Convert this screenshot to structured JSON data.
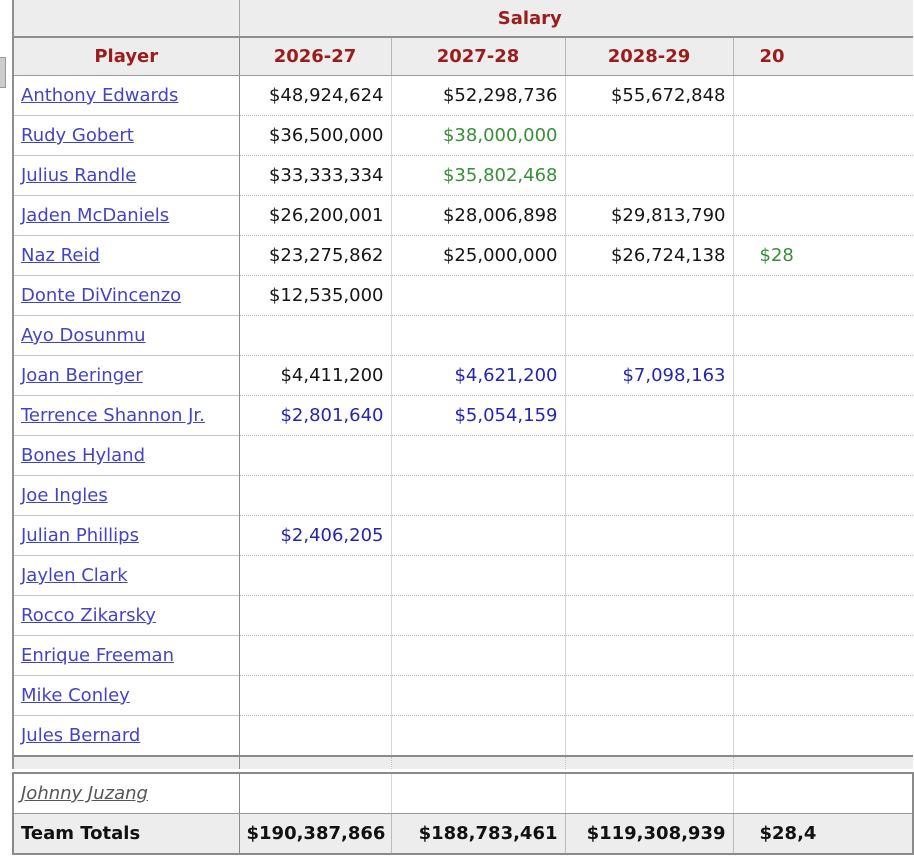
{
  "group_header": {
    "blank": "",
    "label": "Salary"
  },
  "columns": [
    "Player",
    "2026-27",
    "2027-28",
    "2028-29",
    "20"
  ],
  "main_rows": [
    {
      "name": "Anthony Edwards",
      "cells": [
        [
          "$48,924,624",
          "k"
        ],
        [
          "$52,298,736",
          "k"
        ],
        [
          "$55,672,848",
          "k"
        ],
        [
          "",
          "k"
        ]
      ]
    },
    {
      "name": "Rudy Gobert",
      "cells": [
        [
          "$36,500,000",
          "k"
        ],
        [
          "$38,000,000",
          "g"
        ],
        [
          "",
          "k"
        ],
        [
          "",
          "k"
        ]
      ]
    },
    {
      "name": "Julius Randle",
      "cells": [
        [
          "$33,333,334",
          "k"
        ],
        [
          "$35,802,468",
          "g"
        ],
        [
          "",
          "k"
        ],
        [
          "",
          "k"
        ]
      ]
    },
    {
      "name": "Jaden McDaniels",
      "cells": [
        [
          "$26,200,001",
          "k"
        ],
        [
          "$28,006,898",
          "k"
        ],
        [
          "$29,813,790",
          "k"
        ],
        [
          "",
          "k"
        ]
      ]
    },
    {
      "name": "Naz Reid",
      "cells": [
        [
          "$23,275,862",
          "k"
        ],
        [
          "$25,000,000",
          "k"
        ],
        [
          "$26,724,138",
          "k"
        ],
        [
          "$28",
          "g"
        ]
      ]
    },
    {
      "name": "Donte DiVincenzo",
      "cells": [
        [
          "$12,535,000",
          "k"
        ],
        [
          "",
          "k"
        ],
        [
          "",
          "k"
        ],
        [
          "",
          "k"
        ]
      ]
    },
    {
      "name": "Ayo Dosunmu",
      "cells": [
        [
          "",
          "k"
        ],
        [
          "",
          "k"
        ],
        [
          "",
          "k"
        ],
        [
          "",
          "k"
        ]
      ]
    },
    {
      "name": "Joan Beringer",
      "cells": [
        [
          "$4,411,200",
          "k"
        ],
        [
          "$4,621,200",
          "b"
        ],
        [
          "$7,098,163",
          "b"
        ],
        [
          "",
          "k"
        ]
      ]
    },
    {
      "name": "Terrence Shannon Jr.",
      "cells": [
        [
          "$2,801,640",
          "b"
        ],
        [
          "$5,054,159",
          "b"
        ],
        [
          "",
          "k"
        ],
        [
          "",
          "k"
        ]
      ]
    },
    {
      "name": "Bones Hyland",
      "cells": [
        [
          "",
          "k"
        ],
        [
          "",
          "k"
        ],
        [
          "",
          "k"
        ],
        [
          "",
          "k"
        ]
      ]
    },
    {
      "name": "Joe Ingles",
      "cells": [
        [
          "",
          "k"
        ],
        [
          "",
          "k"
        ],
        [
          "",
          "k"
        ],
        [
          "",
          "k"
        ]
      ]
    },
    {
      "name": "Julian Phillips",
      "cells": [
        [
          "$2,406,205",
          "b"
        ],
        [
          "",
          "k"
        ],
        [
          "",
          "k"
        ],
        [
          "",
          "k"
        ]
      ]
    },
    {
      "name": "Jaylen Clark",
      "cells": [
        [
          "",
          "k"
        ],
        [
          "",
          "k"
        ],
        [
          "",
          "k"
        ],
        [
          "",
          "k"
        ]
      ]
    },
    {
      "name": "Rocco Zikarsky",
      "cells": [
        [
          "",
          "k"
        ],
        [
          "",
          "k"
        ],
        [
          "",
          "k"
        ],
        [
          "",
          "k"
        ]
      ]
    },
    {
      "name": "Enrique Freeman",
      "cells": [
        [
          "",
          "k"
        ],
        [
          "",
          "k"
        ],
        [
          "",
          "k"
        ],
        [
          "",
          "k"
        ]
      ]
    },
    {
      "name": "Mike Conley",
      "cells": [
        [
          "",
          "k"
        ],
        [
          "",
          "k"
        ],
        [
          "",
          "k"
        ],
        [
          "",
          "k"
        ]
      ]
    },
    {
      "name": "Jules Bernard",
      "cells": [
        [
          "",
          "k"
        ],
        [
          "",
          "k"
        ],
        [
          "",
          "k"
        ],
        [
          "",
          "k"
        ]
      ]
    }
  ],
  "footer": {
    "two_way_player": "Johnny Juzang",
    "totals_label": "Team Totals",
    "totals": [
      "$190,387,866",
      "$188,783,461",
      "$119,308,939",
      "$28,4"
    ]
  },
  "colors": {
    "header_text": "#9a1c1c",
    "header_bg": "#ededed",
    "link_blue": "#4343c8",
    "salary_black": "#161616",
    "salary_green": "#3a8e3a",
    "salary_blue": "#2525b2",
    "two_way_gray": "#565656",
    "border_dark": "#8a8a8a"
  }
}
